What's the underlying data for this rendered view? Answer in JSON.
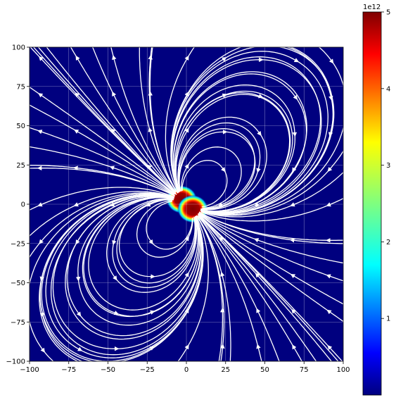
{
  "chart_data": {
    "type": "heatmap",
    "subtype": "streamplot",
    "description_source": "field magnitude heatmap with overlaid white streamlines",
    "x": {
      "range": [
        -100,
        100
      ],
      "ticks": [
        -100,
        -75,
        -50,
        -25,
        0,
        25,
        50,
        75,
        100
      ],
      "tick_labels": [
        "−100",
        "−75",
        "−50",
        "−25",
        "0",
        "25",
        "50",
        "75",
        "100"
      ]
    },
    "y": {
      "range": [
        -100,
        100
      ],
      "ticks": [
        -100,
        -75,
        -50,
        -25,
        0,
        25,
        50,
        75,
        100
      ],
      "tick_labels": [
        "−100",
        "−75",
        "−50",
        "−25",
        "0",
        "25",
        "50",
        "75",
        "100"
      ]
    },
    "grid": true,
    "sources": [
      {
        "x": -3,
        "y": 3
      },
      {
        "x": 4,
        "y": -3
      }
    ],
    "colorbar": {
      "colormap": "jet",
      "range": [
        0,
        5
      ],
      "multiplier_label": "1e12",
      "ticks": [
        1,
        2,
        3,
        4,
        5
      ],
      "tick_labels": [
        "1",
        "2",
        "3",
        "4",
        "5"
      ]
    },
    "colors": {
      "streamline": "#ffffff",
      "background_low": "#00007f"
    }
  }
}
